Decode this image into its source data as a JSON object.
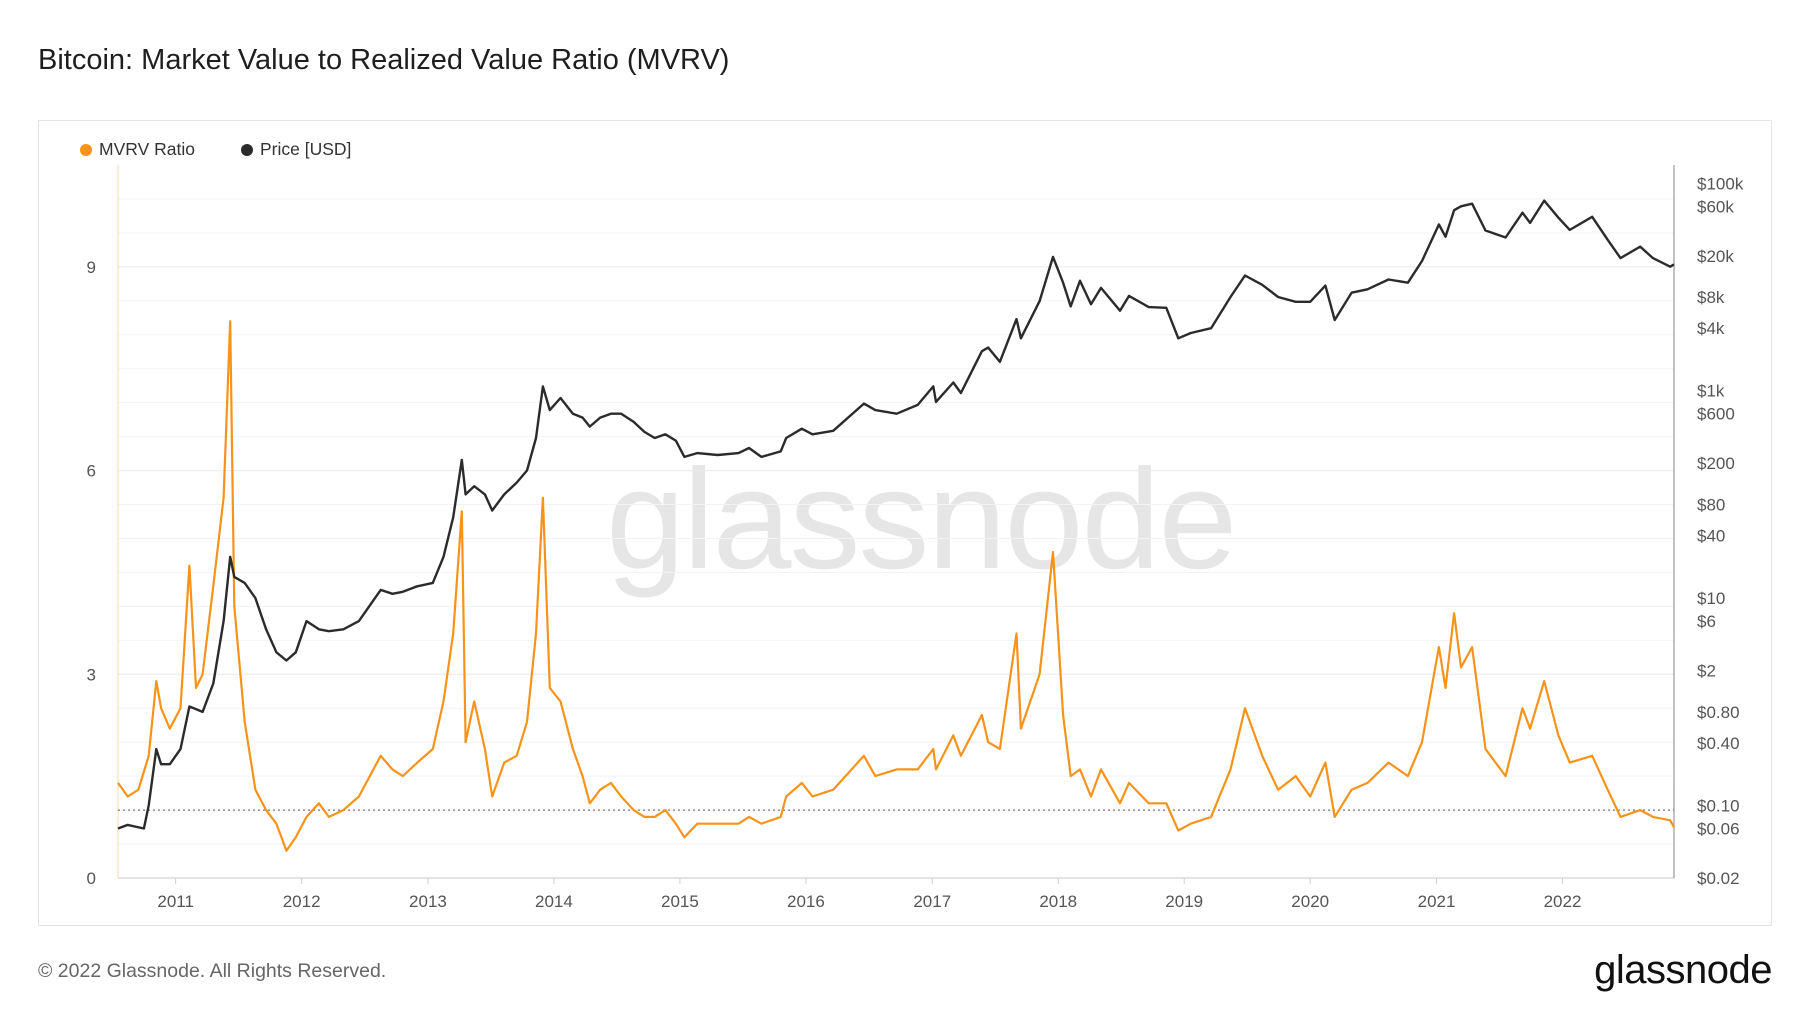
{
  "title": "Bitcoin: Market Value to Realized Value Ratio (MVRV)",
  "footer": {
    "copyright": "© 2022 Glassnode. All Rights Reserved.",
    "logo": "glassnode"
  },
  "watermark": "glassnode",
  "colors": {
    "mvrv": "#f7931a",
    "price": "#2b2b2b",
    "grid": "#ececec",
    "axis_text": "#555555"
  },
  "chart_data": {
    "type": "line",
    "legend": [
      {
        "name": "MVRV Ratio",
        "color": "#f7931a"
      },
      {
        "name": "Price [USD]",
        "color": "#2b2b2b"
      }
    ],
    "legend_position": "top-left",
    "grid": true,
    "x_range": [
      "2010-07-18",
      "2022-11-20"
    ],
    "x_ticks": [
      "2011",
      "2012",
      "2013",
      "2014",
      "2015",
      "2016",
      "2017",
      "2018",
      "2019",
      "2020",
      "2021",
      "2022"
    ],
    "y_left": {
      "range": [
        0,
        10.5
      ],
      "ticks": [
        0,
        3,
        6,
        9
      ],
      "tick_labels": [
        "0",
        "3",
        "6",
        "9"
      ]
    },
    "y_right": {
      "scale": "log",
      "range": [
        0.02,
        150000
      ],
      "ticks": [
        0.02,
        0.06,
        0.1,
        0.4,
        0.8,
        2,
        6,
        10,
        40,
        80,
        200,
        600,
        1000,
        4000,
        8000,
        20000,
        60000,
        100000
      ],
      "tick_labels": [
        "$0.02",
        "$0.06",
        "$0.10",
        "$0.40",
        "$0.80",
        "$2",
        "$6",
        "$10",
        "$40",
        "$80",
        "$200",
        "$600",
        "$1k",
        "$4k",
        "$8k",
        "$20k",
        "$60k",
        "$100k"
      ]
    },
    "reference_line": {
      "axis": "left",
      "value": 1
    },
    "series": [
      {
        "name": "MVRV Ratio",
        "axis": "left",
        "x": [
          "2010-07-18",
          "2010-08-15",
          "2010-09-15",
          "2010-10-15",
          "2010-11-06",
          "2010-11-20",
          "2010-12-15",
          "2011-01-15",
          "2011-02-10",
          "2011-03-01",
          "2011-03-20",
          "2011-04-20",
          "2011-05-20",
          "2011-06-08",
          "2011-06-20",
          "2011-07-20",
          "2011-08-20",
          "2011-09-20",
          "2011-10-20",
          "2011-11-18",
          "2011-12-15",
          "2012-01-15",
          "2012-02-20",
          "2012-03-20",
          "2012-05-01",
          "2012-06-15",
          "2012-08-17",
          "2012-09-20",
          "2012-10-20",
          "2012-12-01",
          "2013-01-15",
          "2013-02-15",
          "2013-03-15",
          "2013-04-09",
          "2013-04-20",
          "2013-05-15",
          "2013-06-15",
          "2013-07-06",
          "2013-08-10",
          "2013-09-15",
          "2013-10-15",
          "2013-11-10",
          "2013-11-30",
          "2013-12-20",
          "2014-01-20",
          "2014-02-25",
          "2014-03-25",
          "2014-04-15",
          "2014-05-15",
          "2014-06-15",
          "2014-07-15",
          "2014-08-20",
          "2014-09-20",
          "2014-10-20",
          "2014-11-20",
          "2014-12-20",
          "2015-01-14",
          "2015-02-20",
          "2015-04-20",
          "2015-06-20",
          "2015-07-20",
          "2015-08-25",
          "2015-10-20",
          "2015-11-05",
          "2015-12-20",
          "2016-01-20",
          "2016-03-20",
          "2016-06-17",
          "2016-07-20",
          "2016-09-20",
          "2016-11-20",
          "2017-01-04",
          "2017-01-12",
          "2017-03-03",
          "2017-03-25",
          "2017-05-25",
          "2017-06-12",
          "2017-07-16",
          "2017-09-02",
          "2017-09-15",
          "2017-11-08",
          "2017-12-17",
          "2018-01-15",
          "2018-02-06",
          "2018-03-05",
          "2018-04-06",
          "2018-05-05",
          "2018-06-29",
          "2018-07-25",
          "2018-09-20",
          "2018-11-10",
          "2018-12-15",
          "2019-01-20",
          "2019-03-20",
          "2019-05-15",
          "2019-06-26",
          "2019-08-15",
          "2019-09-30",
          "2019-11-20",
          "2020-01-01",
          "2020-02-14",
          "2020-03-12",
          "2020-04-30",
          "2020-06-15",
          "2020-08-15",
          "2020-10-10",
          "2020-11-20",
          "2021-01-08",
          "2021-01-27",
          "2021-02-21",
          "2021-03-13",
          "2021-04-14",
          "2021-05-23",
          "2021-07-20",
          "2021-09-07",
          "2021-09-29",
          "2021-11-09",
          "2021-12-20",
          "2022-01-22",
          "2022-03-28",
          "2022-05-12",
          "2022-06-18",
          "2022-08-14",
          "2022-09-20",
          "2022-11-09",
          "2022-11-20"
        ],
        "values": [
          1.4,
          1.2,
          1.3,
          1.8,
          2.9,
          2.5,
          2.2,
          2.5,
          4.6,
          2.8,
          3.0,
          4.3,
          5.6,
          8.2,
          4.0,
          2.3,
          1.3,
          1.0,
          0.8,
          0.4,
          0.6,
          0.9,
          1.1,
          0.9,
          1.0,
          1.2,
          1.8,
          1.6,
          1.5,
          1.7,
          1.9,
          2.6,
          3.6,
          5.4,
          2.0,
          2.6,
          1.9,
          1.2,
          1.7,
          1.8,
          2.3,
          3.6,
          5.6,
          2.8,
          2.6,
          1.9,
          1.5,
          1.1,
          1.3,
          1.4,
          1.2,
          1.0,
          0.9,
          0.9,
          1.0,
          0.8,
          0.6,
          0.8,
          0.8,
          0.8,
          0.9,
          0.8,
          0.9,
          1.2,
          1.4,
          1.2,
          1.3,
          1.8,
          1.5,
          1.6,
          1.6,
          1.9,
          1.6,
          2.1,
          1.8,
          2.4,
          2.0,
          1.9,
          3.6,
          2.2,
          3.0,
          4.8,
          2.4,
          1.5,
          1.6,
          1.2,
          1.6,
          1.1,
          1.4,
          1.1,
          1.1,
          0.7,
          0.8,
          0.9,
          1.6,
          2.5,
          1.8,
          1.3,
          1.5,
          1.2,
          1.7,
          0.9,
          1.3,
          1.4,
          1.7,
          1.5,
          2.0,
          3.4,
          2.8,
          3.9,
          3.1,
          3.4,
          1.9,
          1.5,
          2.5,
          2.2,
          2.9,
          2.1,
          1.7,
          1.8,
          1.3,
          0.9,
          1.0,
          0.9,
          0.85,
          0.75
        ]
      },
      {
        "name": "Price [USD]",
        "axis": "right",
        "x": [
          "2010-07-18",
          "2010-08-15",
          "2010-10-01",
          "2010-10-15",
          "2010-11-06",
          "2010-11-20",
          "2010-12-15",
          "2011-01-15",
          "2011-02-10",
          "2011-03-01",
          "2011-03-20",
          "2011-04-20",
          "2011-05-20",
          "2011-06-08",
          "2011-06-20",
          "2011-07-20",
          "2011-08-20",
          "2011-09-20",
          "2011-10-20",
          "2011-11-18",
          "2011-12-15",
          "2012-01-15",
          "2012-02-20",
          "2012-03-20",
          "2012-05-01",
          "2012-06-15",
          "2012-08-17",
          "2012-09-20",
          "2012-10-20",
          "2012-12-01",
          "2013-01-15",
          "2013-02-15",
          "2013-03-15",
          "2013-04-09",
          "2013-04-20",
          "2013-05-15",
          "2013-06-15",
          "2013-07-06",
          "2013-08-10",
          "2013-09-15",
          "2013-10-15",
          "2013-11-10",
          "2013-11-30",
          "2013-12-20",
          "2014-01-20",
          "2014-02-25",
          "2014-03-25",
          "2014-04-15",
          "2014-05-15",
          "2014-06-15",
          "2014-07-15",
          "2014-08-20",
          "2014-09-20",
          "2014-10-20",
          "2014-11-20",
          "2014-12-20",
          "2015-01-14",
          "2015-02-20",
          "2015-04-20",
          "2015-06-20",
          "2015-07-20",
          "2015-08-25",
          "2015-10-20",
          "2015-11-05",
          "2015-12-20",
          "2016-01-20",
          "2016-03-20",
          "2016-06-17",
          "2016-07-20",
          "2016-09-20",
          "2016-11-20",
          "2017-01-04",
          "2017-01-12",
          "2017-03-03",
          "2017-03-25",
          "2017-05-25",
          "2017-06-12",
          "2017-07-16",
          "2017-09-02",
          "2017-09-15",
          "2017-11-08",
          "2017-12-17",
          "2018-01-15",
          "2018-02-06",
          "2018-03-05",
          "2018-04-06",
          "2018-05-05",
          "2018-06-29",
          "2018-07-25",
          "2018-09-20",
          "2018-11-10",
          "2018-12-15",
          "2019-01-20",
          "2019-03-20",
          "2019-05-15",
          "2019-06-26",
          "2019-08-15",
          "2019-09-30",
          "2019-11-20",
          "2020-01-01",
          "2020-02-14",
          "2020-03-12",
          "2020-04-30",
          "2020-06-15",
          "2020-08-15",
          "2020-10-10",
          "2020-11-20",
          "2021-01-08",
          "2021-01-27",
          "2021-02-21",
          "2021-03-13",
          "2021-04-14",
          "2021-05-23",
          "2021-07-20",
          "2021-09-07",
          "2021-09-29",
          "2021-11-09",
          "2021-12-20",
          "2022-01-22",
          "2022-03-28",
          "2022-05-12",
          "2022-06-18",
          "2022-08-14",
          "2022-09-20",
          "2022-11-09",
          "2022-11-20"
        ],
        "values": [
          0.06,
          0.065,
          0.06,
          0.1,
          0.35,
          0.25,
          0.25,
          0.35,
          0.9,
          0.85,
          0.8,
          1.5,
          6,
          25,
          16,
          14,
          10,
          5,
          3,
          2.5,
          3,
          6,
          5,
          4.8,
          5,
          6,
          12,
          11,
          11.5,
          13,
          14,
          25,
          60,
          215,
          100,
          120,
          100,
          70,
          100,
          130,
          170,
          350,
          1100,
          650,
          850,
          600,
          550,
          450,
          550,
          600,
          600,
          500,
          400,
          350,
          380,
          330,
          230,
          250,
          240,
          250,
          280,
          230,
          260,
          350,
          430,
          380,
          410,
          750,
          650,
          600,
          730,
          1100,
          780,
          1200,
          950,
          2400,
          2600,
          1900,
          4900,
          3200,
          7300,
          19500,
          11000,
          6500,
          11500,
          6800,
          9800,
          5900,
          8200,
          6400,
          6300,
          3200,
          3600,
          4000,
          8000,
          12900,
          10500,
          8000,
          7200,
          7200,
          10300,
          4800,
          8800,
          9500,
          11800,
          11000,
          17800,
          40000,
          30500,
          55000,
          60000,
          63500,
          35000,
          30000,
          52000,
          41500,
          68000,
          46500,
          35500,
          47500,
          28500,
          19000,
          24500,
          19000,
          15700,
          16500
        ]
      }
    ]
  }
}
